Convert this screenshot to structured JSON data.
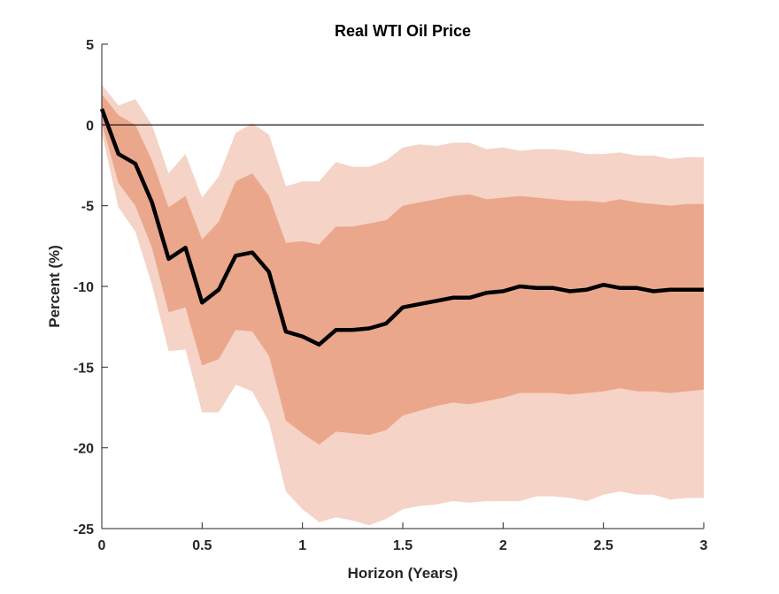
{
  "chart_data": {
    "type": "line",
    "title": "Real WTI Oil Price",
    "xlabel": "Horizon (Years)",
    "ylabel": "Percent (%)",
    "xlim": [
      0,
      3
    ],
    "ylim": [
      -25,
      5
    ],
    "xticks": [
      0,
      0.5,
      1,
      1.5,
      2,
      2.5,
      3
    ],
    "xtick_labels": [
      "0",
      "0.5",
      "1",
      "1.5",
      "2",
      "2.5",
      "3"
    ],
    "yticks": [
      5,
      0,
      -5,
      -10,
      -15,
      -20,
      -25
    ],
    "ytick_labels": [
      "5",
      "0",
      "-5",
      "-10",
      "-15",
      "-20",
      "-25"
    ],
    "grid": false,
    "colors": {
      "outer_band": "#f5d3c6",
      "inner_band": "#eba78c",
      "median": "#000000",
      "zero_line": "#000000"
    },
    "x": [
      0,
      0.083,
      0.167,
      0.25,
      0.333,
      0.417,
      0.5,
      0.583,
      0.667,
      0.75,
      0.833,
      0.917,
      1.0,
      1.083,
      1.167,
      1.25,
      1.333,
      1.417,
      1.5,
      1.583,
      1.667,
      1.75,
      1.833,
      1.917,
      2.0,
      2.083,
      2.167,
      2.25,
      2.333,
      2.417,
      2.5,
      2.583,
      2.667,
      2.75,
      2.833,
      2.917,
      3.0
    ],
    "series": [
      {
        "name": "Median",
        "values": [
          1.0,
          -1.8,
          -2.4,
          -4.8,
          -8.3,
          -7.6,
          -11.0,
          -10.2,
          -8.1,
          -7.9,
          -9.1,
          -12.8,
          -13.1,
          -13.6,
          -12.7,
          -12.7,
          -12.6,
          -12.3,
          -11.3,
          -11.1,
          -10.9,
          -10.7,
          -10.7,
          -10.4,
          -10.3,
          -10.0,
          -10.1,
          -10.1,
          -10.3,
          -10.2,
          -9.9,
          -10.1,
          -10.1,
          -10.3,
          -10.2,
          -10.2,
          -10.2
        ]
      },
      {
        "name": "Inner band upper",
        "values": [
          1.9,
          0.6,
          0.0,
          -2.2,
          -5.1,
          -4.4,
          -7.1,
          -6.0,
          -3.5,
          -3.0,
          -4.4,
          -7.3,
          -7.2,
          -7.4,
          -6.3,
          -6.3,
          -6.1,
          -5.9,
          -5.0,
          -4.8,
          -4.6,
          -4.4,
          -4.3,
          -4.6,
          -4.5,
          -4.4,
          -4.5,
          -4.6,
          -4.7,
          -4.7,
          -4.8,
          -4.6,
          -4.8,
          -4.9,
          -5.0,
          -4.9,
          -4.9
        ]
      },
      {
        "name": "Inner band lower",
        "values": [
          0.1,
          -3.6,
          -5.0,
          -7.6,
          -11.6,
          -11.3,
          -14.9,
          -14.5,
          -12.7,
          -12.8,
          -14.3,
          -18.3,
          -19.1,
          -19.8,
          -19.0,
          -19.1,
          -19.2,
          -18.9,
          -18.0,
          -17.7,
          -17.4,
          -17.2,
          -17.3,
          -17.1,
          -16.9,
          -16.6,
          -16.6,
          -16.6,
          -16.7,
          -16.6,
          -16.5,
          -16.3,
          -16.5,
          -16.5,
          -16.6,
          -16.5,
          -16.4
        ]
      },
      {
        "name": "Outer band upper",
        "values": [
          2.5,
          1.2,
          1.6,
          0.0,
          -3.0,
          -1.8,
          -4.5,
          -3.2,
          -0.5,
          0.1,
          -0.6,
          -3.8,
          -3.5,
          -3.5,
          -2.3,
          -2.6,
          -2.6,
          -2.2,
          -1.4,
          -1.2,
          -1.3,
          -1.1,
          -1.1,
          -1.5,
          -1.4,
          -1.6,
          -1.5,
          -1.5,
          -1.6,
          -1.8,
          -1.8,
          -1.7,
          -1.9,
          -1.9,
          -2.1,
          -2.0,
          -2.0
        ]
      },
      {
        "name": "Outer band lower",
        "values": [
          -0.5,
          -5.1,
          -6.6,
          -9.9,
          -14.0,
          -13.9,
          -17.8,
          -17.8,
          -16.1,
          -16.5,
          -18.4,
          -22.7,
          -23.8,
          -24.6,
          -24.3,
          -24.5,
          -24.8,
          -24.4,
          -23.8,
          -23.6,
          -23.5,
          -23.3,
          -23.4,
          -23.3,
          -23.3,
          -23.3,
          -23.0,
          -23.0,
          -23.1,
          -23.3,
          -22.9,
          -22.7,
          -22.9,
          -22.9,
          -23.2,
          -23.1,
          -23.1
        ]
      }
    ]
  }
}
